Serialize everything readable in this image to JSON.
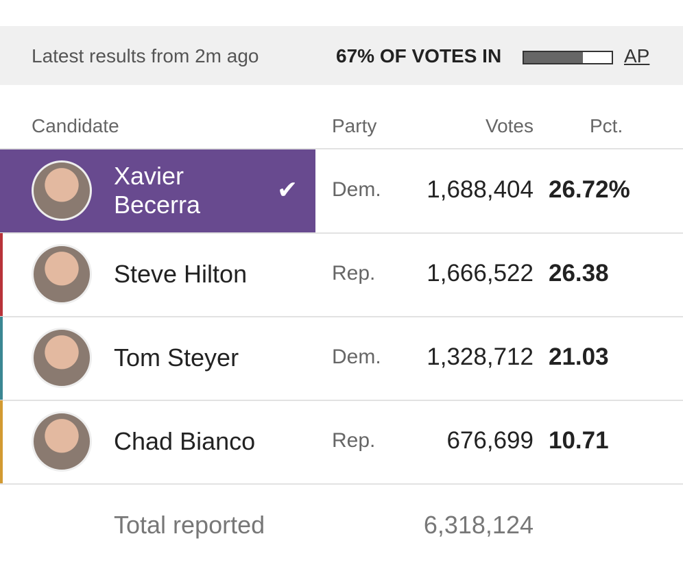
{
  "header": {
    "updated": "Latest results from 2m ago",
    "reporting": "67% OF VOTES IN",
    "reporting_pct": 67,
    "source": "AP"
  },
  "table": {
    "columns": [
      "Candidate",
      "Party",
      "Votes",
      "Pct."
    ],
    "rows": [
      {
        "name": "Xavier Becerra",
        "party": "Dem.",
        "votes": "1,688,404",
        "pct": "26.72%",
        "color": "#684a8f",
        "winner": true
      },
      {
        "name": "Steve Hilton",
        "party": "Rep.",
        "votes": "1,666,522",
        "pct": "26.38",
        "color": "#b8333a",
        "winner": false
      },
      {
        "name": "Tom Steyer",
        "party": "Dem.",
        "votes": "1,328,712",
        "pct": "21.03",
        "color": "#3b8793",
        "winner": false
      },
      {
        "name": "Chad Bianco",
        "party": "Rep.",
        "votes": "676,699",
        "pct": "10.71",
        "color": "#d39a32",
        "winner": false
      }
    ],
    "total_label": "Total reported",
    "total_votes": "6,318,124"
  }
}
